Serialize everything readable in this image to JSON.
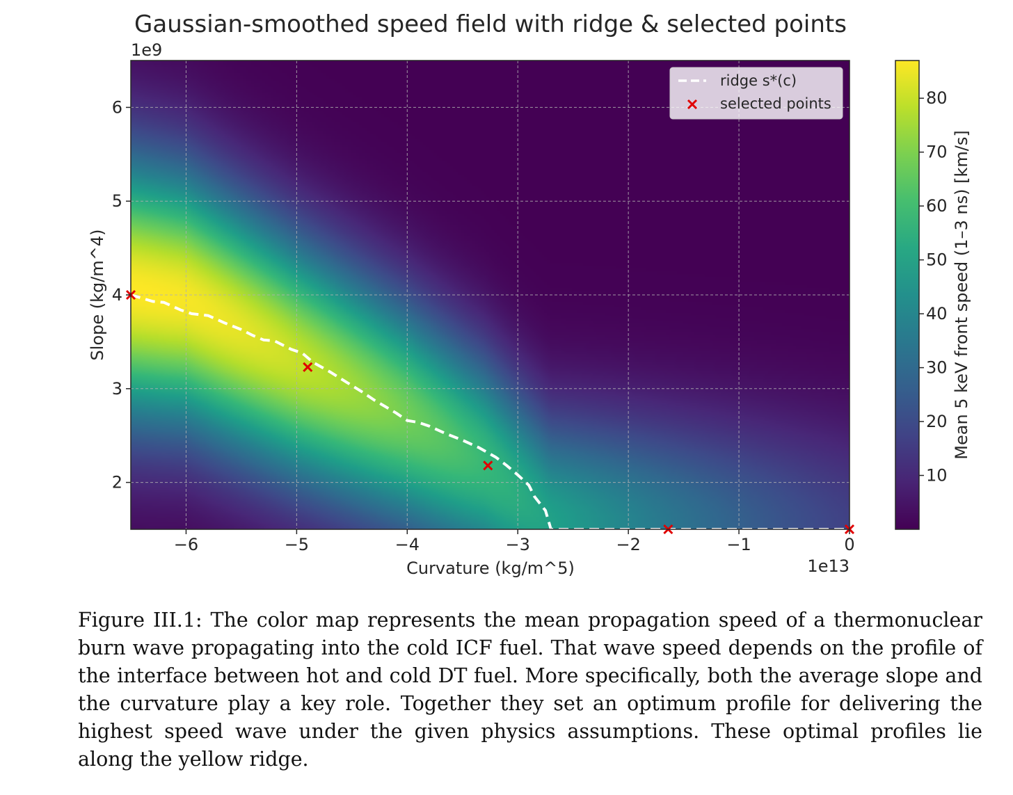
{
  "chart_data": {
    "type": "heatmap",
    "title": "Gaussian-smoothed speed field with ridge & selected points",
    "xlabel": "Curvature (kg/m^5)",
    "ylabel": "Slope (kg/m^4)",
    "x_multiplier_label": "1e13",
    "y_multiplier_label": "1e9",
    "x_scale": 10000000000000.0,
    "y_scale": 1000000000.0,
    "xlim": [
      -6.5,
      0
    ],
    "ylim": [
      1.5,
      6.5
    ],
    "x_ticks": [
      -6,
      -5,
      -4,
      -3,
      -2,
      -1,
      0
    ],
    "x_tick_labels": [
      "−6",
      "−5",
      "−4",
      "−3",
      "−2",
      "−1",
      "0"
    ],
    "y_ticks": [
      2,
      3,
      4,
      5,
      6
    ],
    "y_tick_labels": [
      "2",
      "3",
      "4",
      "5",
      "6"
    ],
    "grid": true,
    "colormap": "viridis",
    "colorbar": {
      "label": "Mean 5 keV front speed (1–3 ns) [km/s]",
      "range": [
        0,
        87
      ],
      "ticks": [
        10,
        20,
        30,
        40,
        50,
        60,
        70,
        80
      ],
      "tick_labels": [
        "10",
        "20",
        "30",
        "40",
        "50",
        "60",
        "70",
        "80"
      ]
    },
    "field_ridge_anchors": [
      [
        -6.5,
        4.05
      ],
      [
        -6.0,
        3.95
      ],
      [
        -5.0,
        3.3
      ],
      [
        -4.0,
        2.7
      ],
      [
        -3.3,
        2.2
      ],
      [
        -2.7,
        1.55
      ],
      [
        0.0,
        1.5
      ]
    ],
    "field_peak_value": 87,
    "series": [
      {
        "name": "ridge s*(c)",
        "style": "dashed-line",
        "color": "#ffffff",
        "x": [
          -6.5,
          -6.3,
          -6.2,
          -6.05,
          -5.95,
          -5.8,
          -5.65,
          -5.5,
          -5.4,
          -5.3,
          -5.2,
          -5.05,
          -4.95,
          -4.85,
          -4.7,
          -4.55,
          -4.4,
          -4.3,
          -4.2,
          -4.1,
          -4.0,
          -3.9,
          -3.8,
          -3.65,
          -3.5,
          -3.35,
          -3.2,
          -3.1,
          -3.0,
          -2.9,
          -2.85,
          -2.75,
          -2.7,
          -2.0,
          -1.0,
          0.0
        ],
        "y": [
          4.0,
          3.93,
          3.92,
          3.84,
          3.8,
          3.78,
          3.7,
          3.63,
          3.57,
          3.52,
          3.51,
          3.42,
          3.38,
          3.28,
          3.18,
          3.07,
          2.96,
          2.88,
          2.81,
          2.74,
          2.66,
          2.64,
          2.6,
          2.52,
          2.45,
          2.37,
          2.27,
          2.18,
          2.08,
          1.97,
          1.85,
          1.7,
          1.5,
          1.5,
          1.5,
          1.5
        ]
      },
      {
        "name": "selected points",
        "style": "markers-x",
        "color": "#e00000",
        "x": [
          -6.5,
          -4.9,
          -3.27,
          -1.64,
          0.0
        ],
        "y": [
          4.0,
          3.23,
          2.18,
          1.5,
          1.5
        ]
      }
    ],
    "legend_position": "top-right"
  },
  "caption": "Figure III.1: The color map represents the mean propagation speed of a thermonuclear burn wave propagating into the cold ICF fuel.  That wave speed depends on the profile of the interface between hot and cold DT fuel. More specifically, both the average slope and the curvature play a key role. Together they set an optimum profile for delivering the highest speed wave under the given physics assumptions. These optimal profiles lie along the yellow ridge."
}
